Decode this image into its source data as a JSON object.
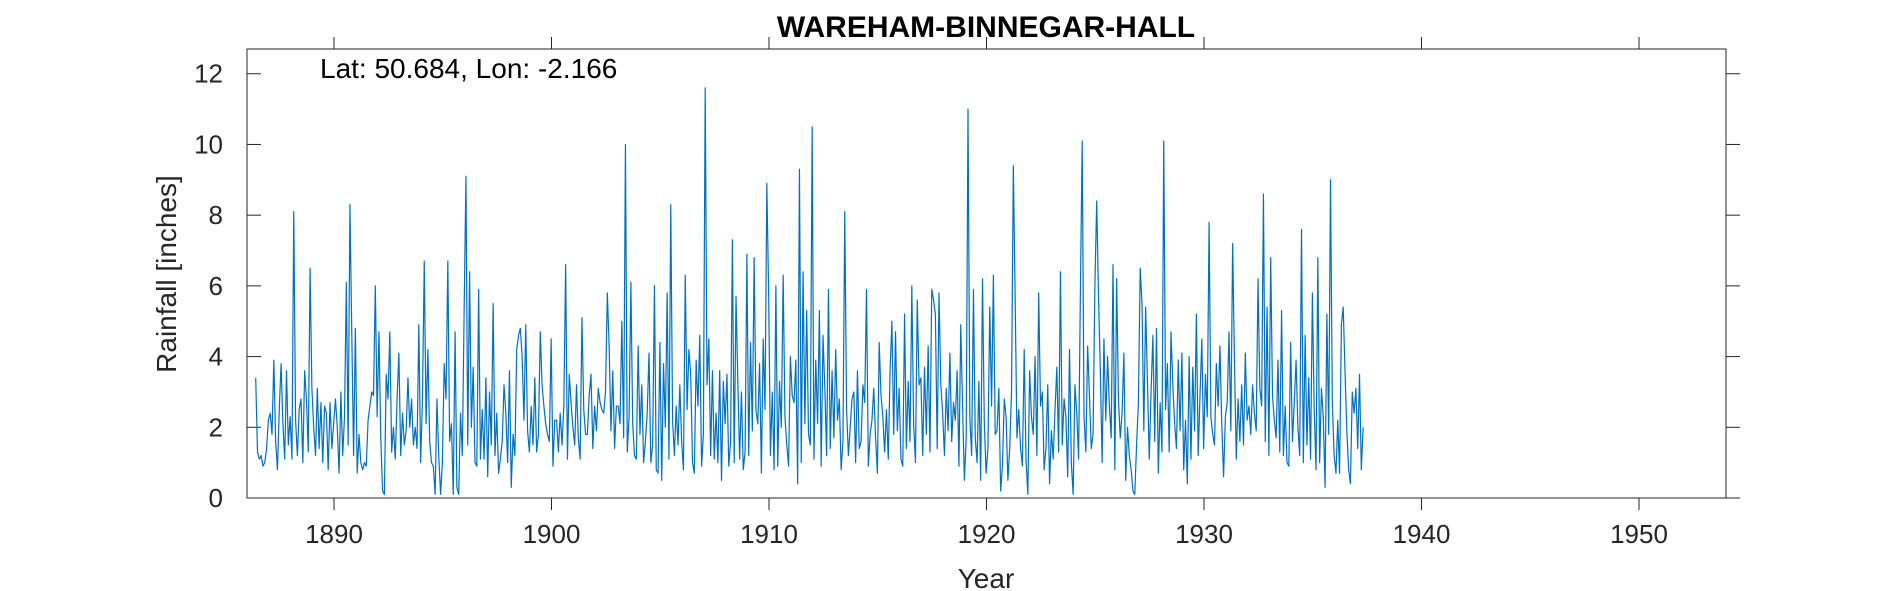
{
  "chart_data": {
    "type": "line",
    "title": "WAREHAM-BINNEGAR-HALL",
    "annotation": "Lat: 50.684, Lon: -2.166",
    "xlabel": "Year",
    "ylabel": "Rainfall [inches]",
    "xlim": [
      1886,
      1954
    ],
    "ylim": [
      0,
      12.7
    ],
    "xticks": [
      1890,
      1900,
      1910,
      1920,
      1930,
      1940,
      1950
    ],
    "yticks": [
      0,
      2,
      4,
      6,
      8,
      10,
      12
    ],
    "grid": false,
    "color": "#0072BD",
    "series": [
      {
        "frequency": "monthly",
        "start": 1886.4,
        "values": [
          3.4,
          1.3,
          1.1,
          1.2,
          0.9,
          1.0,
          1.4,
          2.2,
          2.4,
          1.8,
          3.9,
          1.6,
          0.8,
          2.5,
          3.8,
          2.1,
          1.1,
          3.6,
          1.5,
          2.3,
          1.1,
          8.1,
          2.2,
          1.2,
          2.5,
          2.8,
          1.0,
          3.6,
          2.8,
          1.3,
          6.5,
          3.1,
          2.0,
          1.2,
          3.1,
          1.4,
          2.7,
          1.0,
          2.6,
          2.4,
          0.8,
          2.7,
          1.4,
          2.1,
          2.8,
          2.0,
          0.7,
          3.0,
          1.2,
          2.3,
          6.1,
          1.5,
          8.3,
          4.7,
          1.2,
          4.8,
          0.7,
          1.8,
          1.0,
          0.8,
          1.0,
          0.9,
          2.2,
          2.6,
          3.0,
          2.9,
          6.0,
          2.3,
          4.7,
          1.7,
          0.2,
          0.1,
          3.5,
          2.8,
          4.7,
          1.3,
          2.0,
          1.1,
          2.8,
          4.1,
          1.2,
          2.4,
          1.5,
          1.9,
          3.4,
          2.0,
          2.8,
          1.5,
          2.0,
          1.4,
          4.9,
          1.0,
          2.8,
          6.7,
          2.1,
          4.2,
          1.6,
          1.0,
          0.9,
          0.1,
          2.8,
          1.2,
          0.1,
          1.0,
          3.8,
          2.8,
          6.7,
          1.6,
          2.1,
          0.1,
          4.7,
          0.3,
          0.1,
          2.4,
          1.2,
          5.3,
          9.1,
          1.5,
          6.4,
          2.0,
          3.7,
          1.0,
          0.9,
          5.9,
          1.1,
          2.5,
          1.1,
          3.4,
          0.6,
          3.0,
          1.5,
          5.5,
          1.2,
          2.4,
          0.7,
          1.1,
          1.6,
          3.2,
          2.4,
          1.0,
          3.6,
          0.3,
          1.8,
          1.2,
          4.2,
          4.6,
          4.8,
          4.0,
          2.2,
          4.9,
          1.9,
          1.3,
          2.6,
          1.5,
          3.4,
          1.3,
          1.8,
          4.7,
          3.2,
          2.6,
          2.1,
          1.8,
          1.6,
          4.5,
          0.9,
          2.2,
          2.2,
          1.3,
          2.4,
          1.5,
          2.6,
          6.6,
          1.1,
          3.5,
          2.7,
          2.0,
          1.5,
          3.2,
          1.7,
          1.1,
          5.1,
          2.5,
          1.8,
          1.8,
          2.9,
          3.5,
          1.4,
          2.6,
          1.9,
          3.1,
          2.7,
          2.5,
          2.4,
          3.0,
          5.8,
          4.3,
          1.9,
          3.6,
          1.4,
          2.6,
          2.6,
          2.1,
          5.0,
          1.7,
          10.0,
          1.3,
          2.3,
          6.1,
          2.1,
          1.2,
          1.1,
          4.3,
          1.8,
          3.2,
          1.0,
          1.6,
          2.4,
          4.1,
          1.0,
          1.5,
          6.0,
          0.8,
          0.7,
          4.4,
          0.5,
          3.8,
          2.0,
          5.8,
          1.1,
          8.3,
          2.2,
          1.2,
          2.6,
          1.5,
          3.2,
          1.6,
          0.8,
          6.3,
          2.5,
          4.2,
          3.5,
          1.0,
          0.7,
          3.9,
          2.6,
          4.6,
          0.9,
          1.8,
          11.6,
          3.2,
          4.5,
          1.2,
          3.6,
          1.1,
          2.4,
          1.0,
          3.6,
          0.5,
          3.3,
          2.1,
          3.5,
          0.9,
          1.6,
          7.3,
          1.0,
          5.7,
          3.3,
          1.1,
          3.0,
          0.8,
          1.3,
          6.9,
          1.2,
          4.4,
          1.9,
          6.8,
          2.5,
          2.1,
          3.8,
          0.7,
          4.5,
          2.5,
          8.9,
          5.8,
          1.2,
          3.0,
          0.8,
          6.0,
          0.9,
          3.3,
          2.0,
          6.3,
          2.3,
          1.5,
          0.9,
          4.0,
          2.9,
          2.7,
          3.9,
          0.4,
          9.3,
          1.0,
          6.4,
          2.1,
          5.3,
          1.8,
          1.5,
          10.5,
          1.1,
          3.9,
          2.1,
          5.3,
          0.9,
          4.6,
          3.1,
          1.2,
          5.9,
          1.4,
          3.6,
          1.7,
          4.2,
          2.2,
          2.8,
          0.8,
          1.6,
          8.1,
          2.5,
          1.2,
          2.0,
          2.8,
          3.0,
          1.0,
          3.6,
          1.4,
          1.6,
          3.2,
          2.7,
          5.9,
          0.9,
          1.8,
          2.2,
          3.1,
          1.7,
          0.7,
          4.4,
          2.9,
          2.3,
          1.3,
          2.5,
          1.1,
          3.6,
          5.0,
          1.8,
          4.7,
          1.9,
          3.1,
          1.1,
          0.9,
          5.2,
          1.4,
          3.3,
          1.6,
          6.0,
          2.1,
          1.0,
          5.6,
          3.2,
          3.4,
          1.2,
          3.7,
          1.8,
          4.3,
          1.3,
          5.9,
          5.6,
          5.2,
          1.4,
          5.8,
          3.2,
          2.4,
          1.2,
          3.1,
          1.9,
          4.1,
          1.6,
          2.7,
          2.2,
          3.6,
          0.9,
          4.9,
          2.6,
          0.5,
          1.7,
          11.0,
          2.3,
          1.2,
          5.9,
          1.7,
          1.0,
          3.3,
          0.5,
          6.2,
          2.1,
          0.7,
          1.4,
          5.4,
          2.6,
          6.3,
          1.8,
          1.9,
          3.1,
          0.2,
          0.9,
          2.8,
          2.3,
          0.5,
          1.4,
          3.0,
          9.4,
          5.7,
          1.7,
          2.5,
          1.4,
          0.9,
          4.2,
          1.1,
          0.1,
          3.6,
          2.3,
          1.8,
          4.0,
          1.2,
          5.8,
          2.6,
          3.0,
          0.8,
          1.4,
          3.2,
          0.4,
          1.9,
          1.1,
          2.5,
          3.7,
          1.3,
          6.4,
          1.5,
          2.8,
          2.3,
          0.6,
          4.2,
          1.0,
          0.1,
          3.2,
          2.4,
          1.1,
          5.8,
          10.1,
          2.3,
          1.3,
          4.3,
          2.9,
          1.4,
          1.8,
          6.0,
          8.4,
          5.7,
          3.6,
          1.0,
          4.5,
          2.2,
          4.0,
          2.6,
          1.7,
          6.6,
          0.8,
          6.2,
          2.8,
          1.7,
          2.4,
          4.1,
          0.5,
          2.0,
          1.2,
          0.8,
          0.2,
          0.1,
          1.5,
          2.7,
          6.5,
          5.5,
          1.9,
          5.4,
          3.3,
          1.1,
          3.0,
          4.6,
          1.6,
          4.8,
          0.7,
          2.7,
          1.3,
          10.1,
          2.5,
          3.8,
          1.3,
          4.7,
          3.2,
          2.1,
          1.4,
          3.9,
          1.9,
          4.1,
          0.8,
          2.2,
          0.4,
          4.0,
          1.1,
          3.7,
          1.9,
          5.2,
          1.2,
          2.9,
          4.5,
          1.4,
          3.5,
          2.3,
          7.8,
          2.3,
          1.8,
          1.5,
          3.8,
          2.6,
          4.3,
          2.1,
          0.6,
          2.3,
          2.7,
          4.7,
          1.9,
          7.2,
          3.9,
          1.1,
          2.8,
          1.6,
          3.2,
          1.5,
          4.1,
          2.2,
          2.6,
          1.8,
          3.2,
          2.4,
          1.9,
          6.2,
          3.1,
          2.6,
          8.6,
          1.6,
          5.4,
          1.2,
          6.8,
          2.9,
          2.2,
          1.7,
          3.9,
          1.3,
          5.3,
          1.2,
          2.6,
          1.0,
          0.9,
          4.4,
          1.6,
          2.7,
          3.9,
          2.0,
          1.2,
          7.6,
          1.0,
          4.6,
          1.5,
          3.4,
          1.1,
          5.8,
          2.5,
          0.8,
          6.8,
          1.0,
          3.1,
          2.3,
          0.3,
          5.2,
          1.8,
          9.0,
          2.7,
          1.2,
          0.7,
          2.2,
          0.7,
          4.9,
          5.4,
          3.6,
          1.9,
          0.8,
          0.4,
          3.0,
          2.4,
          3.1,
          1.4,
          3.5,
          0.8,
          2.0
        ]
      }
    ]
  }
}
